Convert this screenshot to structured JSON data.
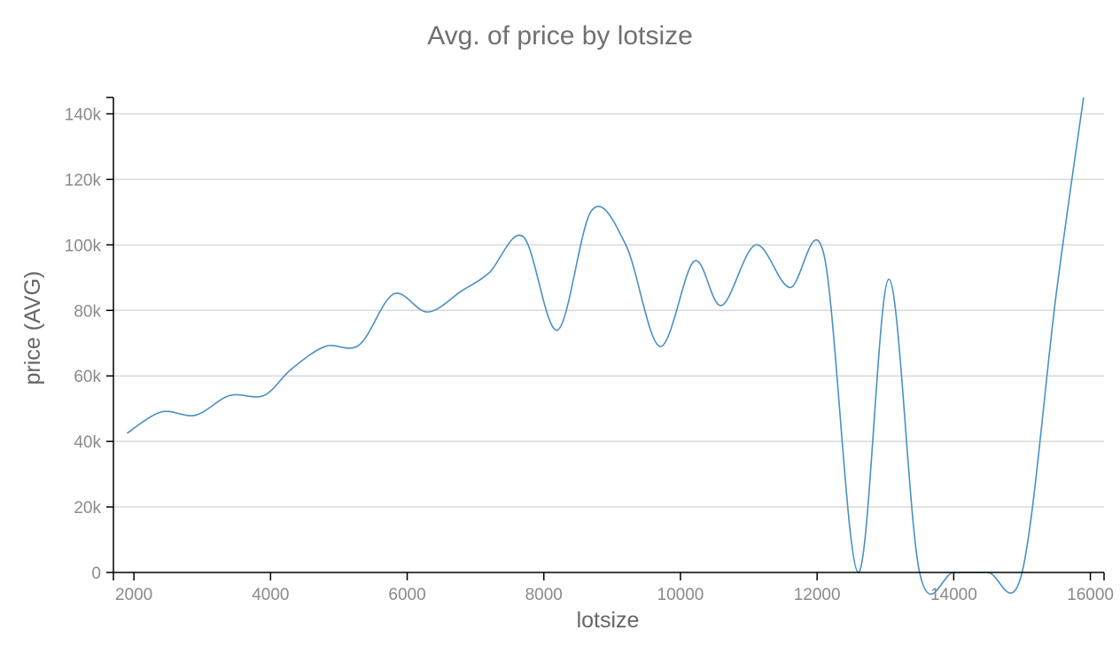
{
  "chart_data": {
    "type": "line",
    "title": "Avg. of price by lotsize",
    "xlabel": "lotsize",
    "ylabel": "price (AVG)",
    "xlim": [
      1700,
      16200
    ],
    "ylim": [
      0,
      145000
    ],
    "x_ticks": [
      2000,
      4000,
      6000,
      8000,
      10000,
      12000,
      14000,
      16000
    ],
    "y_ticks": [
      0,
      20000,
      40000,
      60000,
      80000,
      100000,
      120000,
      140000
    ],
    "y_tick_labels": [
      "0",
      "20k",
      "40k",
      "60k",
      "80k",
      "100k",
      "120k",
      "140k"
    ],
    "grid": true,
    "line_color": "#4a90c2",
    "series": [
      {
        "x": [
          1900,
          2400,
          2900,
          3400,
          3900,
          4300,
          4800,
          5300,
          5800,
          6300,
          6800,
          7200,
          7700,
          8200,
          8700,
          9200,
          9700,
          10200,
          10600,
          11100,
          11600,
          12100,
          12600,
          13050,
          13500,
          14000,
          14500,
          15000,
          15500,
          15900
        ],
        "values": [
          42500,
          49000,
          48000,
          54000,
          54000,
          62000,
          69000,
          69500,
          85000,
          79500,
          86000,
          91500,
          102500,
          74000,
          110500,
          100000,
          69000,
          95000,
          81500,
          100000,
          87000,
          97000,
          0,
          89500,
          0,
          0,
          0,
          0,
          85000,
          145000
        ]
      }
    ]
  }
}
